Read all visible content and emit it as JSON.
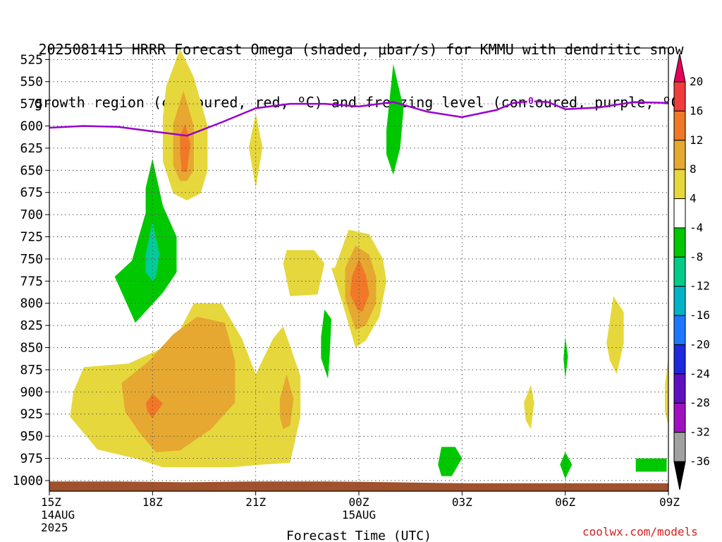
{
  "title_line1": "2025081415 HRRR Forecast Omega (shaded, μbar/s) for KMMU with dendritic snow",
  "title_line2": "growth region (contoured, red, ºC) and freezing level (contoured, purple, ºC)",
  "credit": "coolwx.com/models",
  "chart_data": {
    "type": "area",
    "title": "2025081415 HRRR Forecast Omega (shaded, μbar/s) for KMMU with dendritic snow growth region (contoured, red, ºC) and freezing level (contoured, purple, ºC)",
    "xlabel": "Forecast Time (UTC)",
    "ylabel": "",
    "ylim": [
      1012,
      512
    ],
    "y_ticks": [
      525,
      550,
      575,
      600,
      625,
      650,
      675,
      700,
      725,
      750,
      775,
      800,
      825,
      850,
      875,
      900,
      925,
      950,
      975,
      1000
    ],
    "x_range_hours": [
      0,
      18
    ],
    "x_ticks": [
      {
        "h": 0,
        "label": "15Z",
        "sub1": "14AUG",
        "sub2": "2025"
      },
      {
        "h": 3,
        "label": "18Z",
        "sub1": "",
        "sub2": ""
      },
      {
        "h": 6,
        "label": "21Z",
        "sub1": "",
        "sub2": ""
      },
      {
        "h": 9,
        "label": "00Z",
        "sub1": "15AUG",
        "sub2": ""
      },
      {
        "h": 12,
        "label": "03Z",
        "sub1": "",
        "sub2": ""
      },
      {
        "h": 15,
        "label": "06Z",
        "sub1": "",
        "sub2": ""
      },
      {
        "h": 18,
        "label": "09Z",
        "sub1": "",
        "sub2": ""
      }
    ],
    "grid": true,
    "colorbar": {
      "labels": [
        "20",
        "16",
        "12",
        "8",
        "4",
        "-4",
        "-8",
        "-12",
        "-16",
        "-20",
        "-24",
        "-28",
        "-32",
        "-36"
      ],
      "colors": [
        "#e8005a",
        "#f03c3c",
        "#f07828",
        "#e6a830",
        "#e6d83c",
        "#ffffff",
        "#00c800",
        "#00cc88",
        "#00b4c8",
        "#1e78ff",
        "#1e28dc",
        "#6010c0",
        "#a010c0",
        "#a0a0a0",
        "#000000"
      ]
    },
    "colors": {
      "yellow": "#e6d83c",
      "gold": "#e6a830",
      "orange": "#f07828",
      "green": "#00c800",
      "teal": "#00cc9a",
      "freezing_line": "#9900cc",
      "ground": "#a0522d"
    },
    "freezing_level": {
      "label": "0",
      "label_at": [
        14.0,
        572
      ],
      "points": [
        [
          0,
          602
        ],
        [
          1,
          600
        ],
        [
          2,
          601
        ],
        [
          3,
          606
        ],
        [
          4,
          611
        ],
        [
          5,
          596
        ],
        [
          6,
          580
        ],
        [
          7,
          575
        ],
        [
          8,
          575
        ],
        [
          9,
          578
        ],
        [
          10,
          573
        ],
        [
          11,
          584
        ],
        [
          12,
          590
        ],
        [
          13,
          582
        ],
        [
          13.5,
          574
        ],
        [
          14,
          572
        ],
        [
          14.5,
          573
        ],
        [
          15,
          581
        ],
        [
          16,
          579
        ],
        [
          16.5,
          576
        ],
        [
          17,
          573
        ],
        [
          18,
          574
        ]
      ]
    },
    "omega_areas": [
      {
        "level": "4",
        "points": [
          [
            3.4,
            555
          ],
          [
            3.8,
            513
          ],
          [
            4.2,
            545
          ],
          [
            4.6,
            600
          ],
          [
            4.6,
            650
          ],
          [
            4.4,
            676
          ],
          [
            4.0,
            684
          ],
          [
            3.6,
            676
          ],
          [
            3.3,
            640
          ],
          [
            3.3,
            590
          ]
        ]
      },
      {
        "level": "8",
        "points": [
          [
            3.6,
            598
          ],
          [
            3.9,
            560
          ],
          [
            4.2,
            600
          ],
          [
            4.2,
            650
          ],
          [
            4.0,
            662
          ],
          [
            3.8,
            662
          ],
          [
            3.6,
            645
          ]
        ]
      },
      {
        "level": "12",
        "points": [
          [
            3.8,
            610
          ],
          [
            3.95,
            598
          ],
          [
            4.1,
            620
          ],
          [
            4.0,
            652
          ],
          [
            3.85,
            652
          ],
          [
            3.8,
            630
          ]
        ]
      },
      {
        "level": "4",
        "points": [
          [
            6.0,
            586
          ],
          [
            6.2,
            624
          ],
          [
            6.0,
            670
          ],
          [
            5.8,
            624
          ]
        ]
      },
      {
        "level": "-4",
        "points": [
          [
            9.8,
            605
          ],
          [
            10.0,
            530
          ],
          [
            10.3,
            580
          ],
          [
            10.2,
            625
          ],
          [
            10.0,
            655
          ],
          [
            9.8,
            632
          ]
        ]
      },
      {
        "level": "-4",
        "points": [
          [
            2.8,
            670
          ],
          [
            3.0,
            637
          ],
          [
            3.3,
            690
          ],
          [
            3.7,
            725
          ],
          [
            3.7,
            765
          ],
          [
            3.3,
            788
          ],
          [
            2.9,
            805
          ],
          [
            2.5,
            822
          ],
          [
            1.9,
            770
          ],
          [
            2.4,
            752
          ],
          [
            2.6,
            725
          ],
          [
            2.8,
            698
          ]
        ]
      },
      {
        "level": "-8",
        "points": [
          [
            2.8,
            745
          ],
          [
            3.0,
            708
          ],
          [
            3.2,
            745
          ],
          [
            3.1,
            770
          ],
          [
            3.0,
            775
          ],
          [
            2.8,
            765
          ]
        ]
      },
      {
        "level": "4",
        "points": [
          [
            6.9,
            740
          ],
          [
            7.7,
            740
          ],
          [
            8.0,
            755
          ],
          [
            7.8,
            790
          ],
          [
            7.0,
            792
          ],
          [
            6.8,
            755
          ]
        ]
      },
      {
        "level": "4",
        "points": [
          [
            8.3,
            760
          ],
          [
            8.7,
            717
          ],
          [
            9.3,
            722
          ],
          [
            9.7,
            750
          ],
          [
            9.8,
            775
          ],
          [
            9.6,
            815
          ],
          [
            9.2,
            842
          ],
          [
            8.9,
            850
          ],
          [
            8.6,
            810
          ],
          [
            8.2,
            760
          ]
        ]
      },
      {
        "level": "8",
        "points": [
          [
            8.6,
            760
          ],
          [
            8.9,
            735
          ],
          [
            9.3,
            745
          ],
          [
            9.5,
            770
          ],
          [
            9.5,
            800
          ],
          [
            9.2,
            825
          ],
          [
            8.9,
            830
          ],
          [
            8.6,
            795
          ]
        ]
      },
      {
        "level": "12",
        "points": [
          [
            8.8,
            770
          ],
          [
            9.0,
            750
          ],
          [
            9.2,
            768
          ],
          [
            9.3,
            790
          ],
          [
            9.1,
            810
          ],
          [
            8.95,
            807
          ],
          [
            8.75,
            790
          ]
        ]
      },
      {
        "level": "-4",
        "points": [
          [
            7.9,
            838
          ],
          [
            8.0,
            807
          ],
          [
            8.2,
            818
          ],
          [
            8.15,
            860
          ],
          [
            8.1,
            885
          ],
          [
            7.9,
            862
          ]
        ]
      },
      {
        "level": "4",
        "points": [
          [
            1.0,
            872
          ],
          [
            2.3,
            868
          ],
          [
            3.6,
            845
          ],
          [
            4.2,
            800
          ],
          [
            5.0,
            800
          ],
          [
            5.6,
            840
          ],
          [
            6.0,
            880
          ],
          [
            6.5,
            840
          ],
          [
            6.8,
            826
          ],
          [
            7.3,
            882
          ],
          [
            7.3,
            928
          ],
          [
            7.0,
            980
          ],
          [
            6.2,
            982
          ],
          [
            5.3,
            985
          ],
          [
            4.6,
            985
          ],
          [
            3.3,
            985
          ],
          [
            2.5,
            975
          ],
          [
            1.4,
            965
          ],
          [
            0.6,
            928
          ],
          [
            0.7,
            900
          ]
        ]
      },
      {
        "level": "8",
        "points": [
          [
            2.1,
            890
          ],
          [
            2.9,
            865
          ],
          [
            3.6,
            835
          ],
          [
            4.3,
            815
          ],
          [
            5.1,
            822
          ],
          [
            5.4,
            865
          ],
          [
            5.4,
            912
          ],
          [
            4.7,
            942
          ],
          [
            3.8,
            966
          ],
          [
            3.1,
            968
          ],
          [
            2.6,
            945
          ],
          [
            2.2,
            922
          ]
        ]
      },
      {
        "level": "8",
        "points": [
          [
            6.7,
            908
          ],
          [
            6.9,
            880
          ],
          [
            7.1,
            908
          ],
          [
            7.0,
            938
          ],
          [
            6.8,
            942
          ],
          [
            6.7,
            928
          ]
        ]
      },
      {
        "level": "12",
        "points": [
          [
            2.8,
            913
          ],
          [
            3.0,
            902
          ],
          [
            3.3,
            913
          ],
          [
            3.0,
            930
          ],
          [
            2.85,
            922
          ]
        ]
      },
      {
        "level": "4",
        "points": [
          [
            13.8,
            912
          ],
          [
            14.0,
            892
          ],
          [
            14.1,
            912
          ],
          [
            14.0,
            942
          ],
          [
            13.85,
            932
          ]
        ]
      },
      {
        "level": "4",
        "points": [
          [
            16.2,
            845
          ],
          [
            16.4,
            792
          ],
          [
            16.7,
            810
          ],
          [
            16.7,
            845
          ],
          [
            16.5,
            880
          ],
          [
            16.3,
            865
          ]
        ]
      },
      {
        "level": "4",
        "points": [
          [
            17.9,
            892
          ],
          [
            18.0,
            860
          ],
          [
            18.0,
            938
          ],
          [
            17.9,
            922
          ]
        ]
      },
      {
        "level": "-4",
        "points": [
          [
            14.95,
            862
          ],
          [
            15.0,
            838
          ],
          [
            15.08,
            860
          ],
          [
            15.0,
            885
          ]
        ]
      },
      {
        "level": "-4",
        "points": [
          [
            11.3,
            982
          ],
          [
            11.4,
            962
          ],
          [
            11.8,
            962
          ],
          [
            12.0,
            975
          ],
          [
            11.7,
            995
          ],
          [
            11.4,
            995
          ]
        ]
      },
      {
        "level": "-4",
        "points": [
          [
            14.85,
            982
          ],
          [
            15.0,
            968
          ],
          [
            15.2,
            982
          ],
          [
            15.0,
            998
          ]
        ]
      },
      {
        "level": "-4",
        "points": [
          [
            17.05,
            975
          ],
          [
            17.95,
            975
          ],
          [
            17.95,
            990
          ],
          [
            17.05,
            990
          ]
        ]
      }
    ]
  }
}
